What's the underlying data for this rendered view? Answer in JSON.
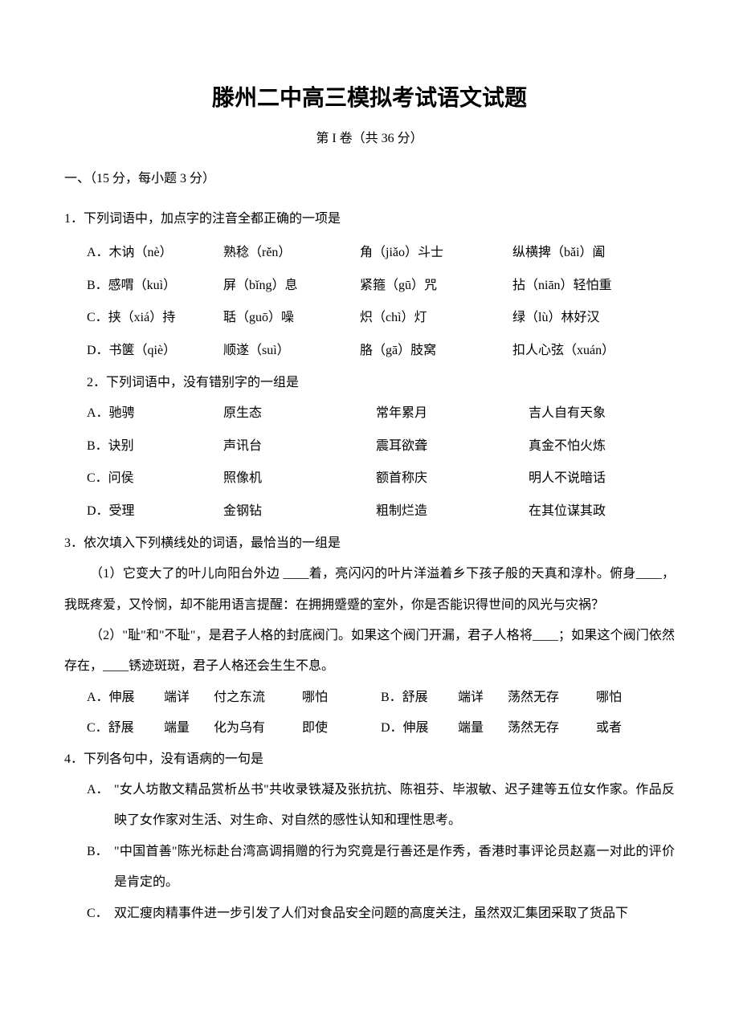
{
  "title": "滕州二中高三模拟考试语文试题",
  "subtitle": "第 I 卷（共 36 分）",
  "section1": "一、（15 分，每小题 3 分）",
  "q1": {
    "stem": "1．下列词语中，加点字的注音全都正确的一项是",
    "opts": [
      [
        "A．木讷（nè）",
        "熟稔（rěn）",
        "角（jiǎo）斗士",
        "纵横捭（bǎi）阖"
      ],
      [
        "B．感喟（kuì）",
        "屏（bǐng）息",
        "紧箍（gū）咒",
        "拈（niān）轻怕重"
      ],
      [
        "C．挟（xiá）持",
        "聒（guō）噪",
        "炽（chì）灯",
        "绿（lù）林好汉"
      ],
      [
        "D．书箧（qiè）",
        "顺遂（suì）",
        "胳（gā）肢窝",
        "扣人心弦（xuán）"
      ]
    ]
  },
  "q2": {
    "stem": "2．下列词语中，没有错别字的一组是",
    "opts": [
      [
        "A．驰骋",
        "原生态",
        "常年累月",
        "吉人自有天象"
      ],
      [
        "B．诀别",
        "声讯台",
        "震耳欲聋",
        "真金不怕火炼"
      ],
      [
        "C．问侯",
        "照像机",
        "额首称庆",
        "明人不说暗话"
      ],
      [
        "D．受理",
        "金钢钻",
        "粗制烂造",
        "在其位谋其政"
      ]
    ]
  },
  "q3": {
    "stem": "3．依次填入下列横线处的词语，最恰当的一组是",
    "p1": "（1）它变大了的叶儿向阳台外边 ____着，亮闪闪的叶片洋溢着乡下孩子般的天真和淳朴。俯身____，我既疼爱，又怜悯，却不能用语言提醒：在拥拥蹙蹙的室外，你是否能识得世间的风光与灾祸？",
    "p2": "（2）\"耻\"和\"不耻\"，是君子人格的封底阀门。如果这个阀门开漏，君子人格将____；如果这个阀门依然存在，____锈迹斑斑，君子人格还会生生不息。",
    "row1": {
      "a": {
        "lbl": "A．伸展",
        "w1": "端详",
        "w2": "付之东流",
        "w3": "哪怕"
      },
      "b": {
        "lbl": "B．舒展",
        "w1": "端详",
        "w2": "荡然无存",
        "w3": "哪怕"
      }
    },
    "row2": {
      "c": {
        "lbl": "C．舒展",
        "w1": "端量",
        "w2": "化为乌有",
        "w3": "即使"
      },
      "d": {
        "lbl": "D．伸展",
        "w1": "端量",
        "w2": "荡然无存",
        "w3": "或者"
      }
    }
  },
  "q4": {
    "stem": "4．下列各句中，没有语病的一句是",
    "opts": [
      {
        "lbl": "A．",
        "body": "\"女人坊散文精品赏析丛书\"共收录铁凝及张抗抗、陈祖芬、毕淑敏、迟子建等五位女作家。作品反映了女作家对生活、对生命、对自然的感性认知和理性思考。"
      },
      {
        "lbl": "B．",
        "body": "\"中国首善\"陈光标赴台湾高调捐赠的行为究竟是行善还是作秀，香港时事评论员赵嘉一对此的评价是肯定的。"
      },
      {
        "lbl": "C．",
        "body": "双汇瘦肉精事件进一步引发了人们对食品安全问题的高度关注，虽然双汇集团采取了货品下"
      }
    ]
  }
}
